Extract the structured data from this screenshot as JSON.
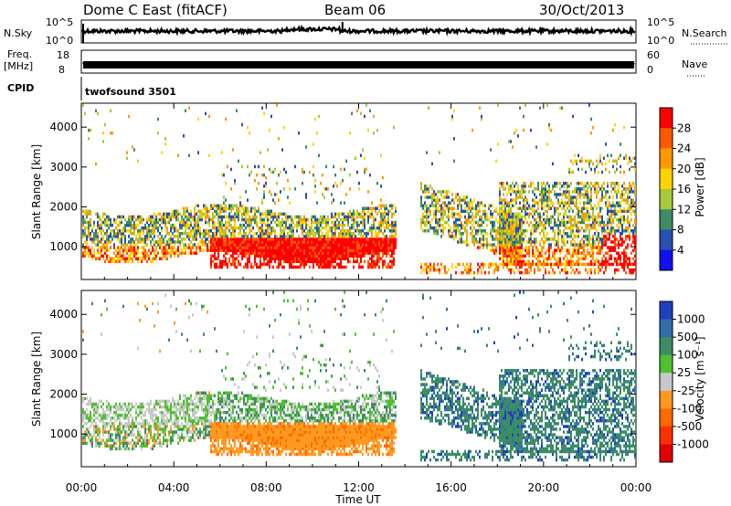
{
  "header": {
    "radar": "Dome C East (fitACF)",
    "beam": "Beam 06",
    "date": "30/Oct/2013"
  },
  "noise_panel": {
    "left_label": "N.Sky",
    "left_ticks": [
      "10^5",
      "10^0"
    ],
    "right_label": "N.Search",
    "right_ticks": [
      "10^5",
      "10^0"
    ]
  },
  "freq_panel": {
    "left_label_1": "Freq.",
    "left_label_2": "[MHz]",
    "left_ticks": [
      "18",
      "8"
    ],
    "right_label": "Nave",
    "right_ticks": [
      "60",
      "0"
    ]
  },
  "cpid_panel": {
    "label": "CPID",
    "program": "twofsound 3501"
  },
  "time_axis": {
    "label": "Time UT",
    "ticks": [
      "00:00",
      "04:00",
      "08:00",
      "12:00",
      "16:00",
      "20:00",
      "00:00"
    ]
  },
  "chart_data": [
    {
      "type": "heatmap",
      "name": "power",
      "ylabel": "Slant Range [km]",
      "x_range_hours": [
        0,
        24
      ],
      "ylim": [
        180,
        4600
      ],
      "yticks": [
        "1000",
        "2000",
        "3000",
        "4000"
      ],
      "ytick_values": [
        1000,
        2000,
        3000,
        4000
      ],
      "colorbar": {
        "label": "Power [dB]",
        "ticks": [
          "28",
          "24",
          "20",
          "16",
          "12",
          "8",
          "4"
        ],
        "colors": [
          "#ff0000",
          "#ff5a00",
          "#ff9900",
          "#ffd400",
          "#a8c83c",
          "#3c8c64",
          "#2850b0",
          "#1010f0"
        ]
      }
    },
    {
      "type": "heatmap",
      "name": "velocity",
      "ylabel": "Slant Range [km]",
      "x_range_hours": [
        0,
        24
      ],
      "ylim": [
        180,
        4600
      ],
      "yticks": [
        "1000",
        "2000",
        "3000",
        "4000"
      ],
      "ytick_values": [
        1000,
        2000,
        3000,
        4000
      ],
      "colorbar": {
        "label": "Velocity [m s⁻¹]",
        "ticks": [
          "1000",
          "500",
          "100",
          "25",
          "-25",
          "-100",
          "-500",
          "-1000"
        ],
        "colors": [
          "#2040c0",
          "#2f6ea8",
          "#3c8c64",
          "#50c030",
          "#c8c8c8",
          "#ff9a20",
          "#ff6a00",
          "#ff3000",
          "#e00000"
        ]
      }
    }
  ]
}
